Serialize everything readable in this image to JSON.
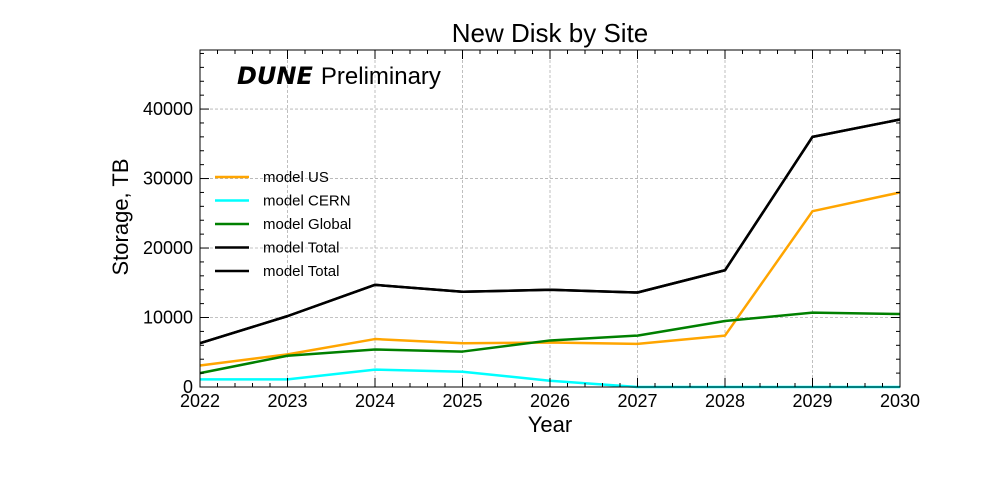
{
  "chart_data": {
    "type": "line",
    "title": "New Disk by Site",
    "xlabel": "Year",
    "ylabel": "Storage, TB",
    "x": [
      2022,
      2023,
      2024,
      2025,
      2026,
      2027,
      2028,
      2029,
      2030
    ],
    "xlim": [
      2022,
      2030
    ],
    "ylim": [
      0,
      48500
    ],
    "xticks": [
      2022,
      2023,
      2024,
      2025,
      2026,
      2027,
      2028,
      2029,
      2030
    ],
    "yticks": [
      0,
      10000,
      20000,
      30000,
      40000
    ],
    "grid": true,
    "legend_position": "center-left",
    "watermark": {
      "bold": "DUNE",
      "plain": "Preliminary"
    },
    "series": [
      {
        "name": "model US",
        "color": "#FFA500",
        "values": [
          3100,
          4700,
          6900,
          6300,
          6400,
          6200,
          7400,
          25300,
          28000
        ]
      },
      {
        "name": "model CERN",
        "color": "#00FFFF",
        "values": [
          1100,
          1100,
          2500,
          2200,
          900,
          0,
          0,
          0,
          0
        ]
      },
      {
        "name": "model Global",
        "color": "#008000",
        "values": [
          2000,
          4500,
          5400,
          5100,
          6700,
          7400,
          9500,
          10700,
          10500
        ]
      },
      {
        "name": "model Total",
        "color": "#000000",
        "values": [
          6300,
          10200,
          14700,
          13700,
          14000,
          13600,
          16800,
          36000,
          38500
        ]
      },
      {
        "name": "model Total",
        "color": "#000000",
        "values": [
          6300,
          10200,
          14700,
          13700,
          14000,
          13600,
          16800,
          36000,
          38500
        ]
      }
    ]
  }
}
